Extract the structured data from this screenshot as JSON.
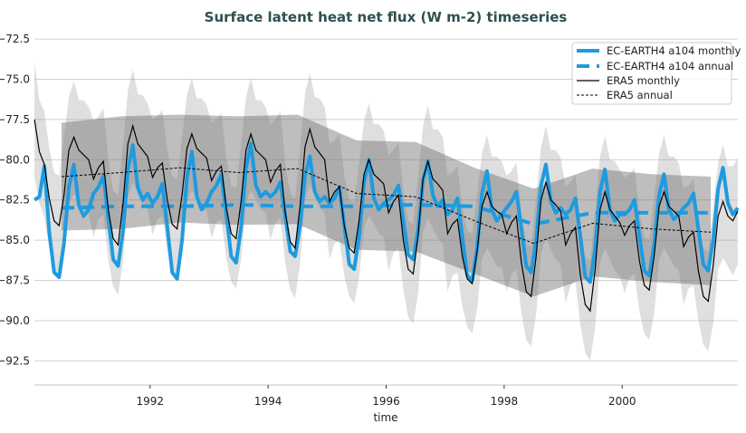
{
  "chart_data": {
    "type": "line",
    "title": "Surface latent heat net flux (W m-2) timeseries",
    "xlabel": "time",
    "ylabel": "",
    "xlim": [
      1990.04,
      2001.96
    ],
    "ylim": [
      -94.0,
      -71.2
    ],
    "yticks": [
      -72.5,
      -75.0,
      -77.5,
      -80.0,
      -82.5,
      -85.0,
      -87.5,
      -90.0,
      -92.5
    ],
    "ytick_labels": [
      "−72.5",
      "−75.0",
      "−77.5",
      "−80.0",
      "−82.5",
      "−85.0",
      "−87.5",
      "−90.0",
      "−92.5"
    ],
    "xticks": [
      1992,
      1994,
      1996,
      1998,
      2000
    ],
    "xtick_labels": [
      "1992",
      "1994",
      "1996",
      "1998",
      "2000"
    ],
    "grid": "horizontal",
    "legend_position": "top-right",
    "monthly_start_year": 1990,
    "series": [
      {
        "name": "EC-EARTH4 a104 monthly",
        "style": "solid-thick",
        "color": "#1e9be0",
        "values": [
          -82.5,
          -82.3,
          -80.4,
          -84.5,
          -87.0,
          -87.3,
          -85.2,
          -81.7,
          -80.3,
          -82.8,
          -83.5,
          -83.1,
          -82.1,
          -81.7,
          -81.0,
          -83.6,
          -86.2,
          -86.6,
          -84.4,
          -80.6,
          -79.1,
          -81.7,
          -82.5,
          -82.1,
          -82.7,
          -82.3,
          -81.5,
          -84.2,
          -87.0,
          -87.4,
          -85.0,
          -81.1,
          -79.5,
          -82.3,
          -83.1,
          -82.7,
          -82.0,
          -81.6,
          -80.9,
          -83.4,
          -86.0,
          -86.4,
          -84.2,
          -80.5,
          -79.0,
          -81.6,
          -82.3,
          -82.0,
          -82.3,
          -82.0,
          -81.4,
          -83.5,
          -85.7,
          -86.0,
          -84.1,
          -81.0,
          -79.8,
          -82.0,
          -82.6,
          -82.3,
          -82.7,
          -82.4,
          -81.7,
          -84.1,
          -86.5,
          -86.8,
          -84.8,
          -81.4,
          -80.0,
          -82.4,
          -83.1,
          -82.7,
          -82.5,
          -82.2,
          -81.6,
          -83.8,
          -85.9,
          -86.2,
          -84.4,
          -81.3,
          -80.1,
          -82.2,
          -82.9,
          -82.5,
          -83.4,
          -83.1,
          -82.4,
          -84.8,
          -87.2,
          -87.5,
          -85.5,
          -82.1,
          -80.7,
          -83.1,
          -83.8,
          -83.4,
          -83.0,
          -82.6,
          -82.0,
          -84.3,
          -86.6,
          -87.0,
          -85.0,
          -81.6,
          -80.3,
          -82.6,
          -83.3,
          -83.0,
          -83.4,
          -83.1,
          -82.4,
          -84.8,
          -87.3,
          -87.6,
          -85.5,
          -82.0,
          -80.6,
          -83.1,
          -83.8,
          -83.4,
          -83.4,
          -83.1,
          -82.5,
          -84.7,
          -86.9,
          -87.2,
          -85.3,
          -82.2,
          -80.9,
          -83.1,
          -83.7,
          -83.4,
          -83.0,
          -82.7,
          -82.1,
          -84.3,
          -86.5,
          -86.9,
          -85.0,
          -81.8,
          -80.5,
          -82.7,
          -83.4,
          -83.0
        ]
      },
      {
        "name": "EC-EARTH4 a104 annual",
        "style": "dashed-thick",
        "color": "#1e9be0",
        "x": [
          1990.5,
          1991.5,
          1992.5,
          1993.5,
          1994.5,
          1995.5,
          1996.5,
          1997.5,
          1998.5,
          1999.5,
          2000.5,
          2001.5
        ],
        "values": [
          -83.0,
          -82.9,
          -82.9,
          -82.8,
          -82.9,
          -82.9,
          -82.8,
          -82.9,
          -84.0,
          -83.3,
          -83.3,
          -83.3
        ]
      },
      {
        "name": "ERA5 monthly",
        "style": "solid-thin",
        "color": "#000000",
        "values": [
          -77.5,
          -79.5,
          -80.3,
          -82.4,
          -83.8,
          -84.1,
          -82.2,
          -79.4,
          -78.6,
          -79.4,
          -79.7,
          -80.0,
          -81.2,
          -80.5,
          -80.1,
          -83.1,
          -84.9,
          -85.3,
          -82.7,
          -79.0,
          -77.9,
          -79.0,
          -79.4,
          -79.8,
          -81.1,
          -80.5,
          -80.2,
          -82.5,
          -84.0,
          -84.3,
          -82.2,
          -79.3,
          -78.4,
          -79.3,
          -79.6,
          -79.9,
          -81.3,
          -80.7,
          -80.4,
          -83.0,
          -84.6,
          -84.9,
          -82.6,
          -79.4,
          -78.4,
          -79.4,
          -79.7,
          -80.0,
          -81.4,
          -80.7,
          -80.3,
          -83.3,
          -85.1,
          -85.5,
          -82.9,
          -79.2,
          -78.1,
          -79.2,
          -79.6,
          -80.0,
          -82.6,
          -82.0,
          -81.7,
          -84.1,
          -85.5,
          -85.8,
          -83.8,
          -80.9,
          -80.0,
          -80.9,
          -81.2,
          -81.5,
          -83.3,
          -82.6,
          -82.2,
          -85.0,
          -86.8,
          -87.1,
          -84.7,
          -81.2,
          -80.1,
          -81.2,
          -81.5,
          -81.9,
          -84.6,
          -84.0,
          -83.7,
          -86.0,
          -87.4,
          -87.7,
          -85.7,
          -82.9,
          -82.0,
          -82.9,
          -83.2,
          -83.4,
          -84.6,
          -83.9,
          -83.5,
          -86.4,
          -88.2,
          -88.5,
          -86.0,
          -82.5,
          -81.4,
          -82.5,
          -82.8,
          -83.2,
          -85.3,
          -84.6,
          -84.2,
          -87.2,
          -89.0,
          -89.4,
          -86.8,
          -83.1,
          -82.0,
          -83.1,
          -83.5,
          -83.9,
          -84.7,
          -84.1,
          -83.8,
          -86.3,
          -87.8,
          -88.1,
          -86.0,
          -82.9,
          -82.0,
          -82.9,
          -83.2,
          -83.5,
          -85.4,
          -84.8,
          -84.5,
          -86.9,
          -88.5,
          -88.8,
          -86.6,
          -83.5,
          -82.6,
          -83.5,
          -83.8,
          -83.2
        ],
        "band_std_by_calendar_month": [
          3.6,
          3.2,
          3.3,
          3.1,
          3.0,
          3.1,
          3.6,
          3.3,
          3.5,
          3.1,
          3.4,
          3.3
        ]
      },
      {
        "name": "ERA5 annual",
        "style": "dashed-thin",
        "color": "#000000",
        "x": [
          1990.5,
          1991.5,
          1992.5,
          1993.5,
          1994.5,
          1995.5,
          1996.5,
          1997.5,
          1998.5,
          1999.5,
          2000.5,
          2001.5
        ],
        "values": [
          -81.05,
          -80.8,
          -80.5,
          -80.8,
          -80.55,
          -82.1,
          -82.3,
          -83.8,
          -85.2,
          -83.95,
          -84.3,
          -84.5
        ],
        "band_upper": [
          -77.7,
          -77.3,
          -77.2,
          -77.3,
          -77.2,
          -78.8,
          -78.9,
          -80.5,
          -81.8,
          -80.55,
          -80.9,
          -81.05
        ],
        "band_lower": [
          -84.4,
          -84.3,
          -83.9,
          -84.05,
          -84.0,
          -85.6,
          -85.7,
          -87.1,
          -88.5,
          -87.25,
          -87.6,
          -87.8
        ]
      }
    ]
  }
}
